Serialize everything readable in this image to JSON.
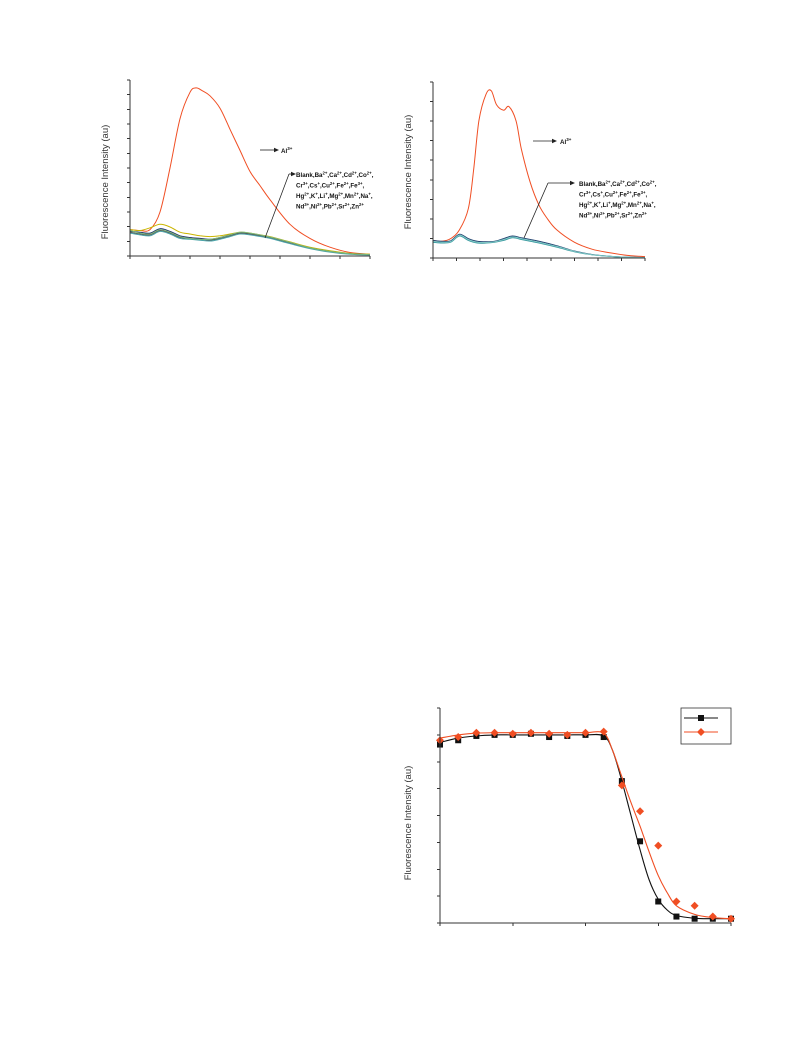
{
  "chart_data": [
    {
      "id": "chart-a",
      "type": "line",
      "title": "",
      "ylabel": "Fluorescence Intensity (au)",
      "xlabel": "",
      "xlim": [
        0,
        12
      ],
      "ylim": [
        0,
        100
      ],
      "grid": false,
      "series": [
        {
          "key": "al",
          "color": "#f04e23",
          "x": [
            0,
            0.5,
            1,
            1.5,
            2,
            2.5,
            3,
            3.3,
            3.6,
            4,
            4.5,
            5,
            5.5,
            6,
            6.5,
            7,
            8,
            9,
            10,
            11,
            12
          ],
          "y": [
            15,
            14.5,
            15,
            25,
            50,
            78,
            93,
            95.5,
            94,
            91,
            84,
            72,
            60,
            48,
            40,
            32,
            18,
            10,
            5,
            2,
            1
          ]
        },
        {
          "key": "yellow",
          "color": "#c9b400",
          "x": [
            0,
            0.5,
            1,
            1.5,
            2,
            2.5,
            3,
            3.5,
            4,
            4.5,
            5,
            5.5,
            6,
            7,
            8,
            9,
            10,
            11,
            12
          ],
          "y": [
            15,
            14.5,
            16,
            18,
            16.5,
            13.5,
            12.5,
            11.5,
            11,
            11.5,
            12.5,
            13.5,
            13,
            11,
            8,
            5,
            3,
            1.5,
            1
          ]
        },
        {
          "key": "navy",
          "color": "#1f2f6b",
          "x": [
            0,
            0.5,
            1,
            1.5,
            2,
            2.5,
            3,
            3.5,
            4,
            4.5,
            5,
            5.5,
            6,
            7,
            8,
            9,
            10,
            11,
            12
          ],
          "y": [
            14,
            13.5,
            13,
            15.5,
            14,
            11.5,
            10.5,
            10,
            9.5,
            10.5,
            12,
            13,
            12.5,
            10.5,
            7.5,
            4.5,
            2.5,
            1.2,
            0.8
          ]
        },
        {
          "key": "blank",
          "color": "#555555",
          "x": [
            0,
            0.5,
            1,
            1.5,
            2,
            2.5,
            3,
            3.5,
            4,
            4.5,
            5,
            5.5,
            6,
            7,
            8,
            9,
            10,
            11,
            12
          ],
          "y": [
            13.5,
            12.5,
            12,
            14.5,
            13,
            10.5,
            10,
            9.5,
            9,
            10,
            11.5,
            13,
            12.5,
            10.5,
            7.5,
            4.5,
            2.5,
            1.2,
            0.8
          ]
        },
        {
          "key": "teal",
          "color": "#4aa3a8",
          "x": [
            0,
            0.5,
            1,
            1.5,
            2,
            2.5,
            3,
            3.5,
            4,
            4.5,
            5,
            5.5,
            6,
            7,
            8,
            9,
            10,
            11,
            12
          ],
          "y": [
            13,
            12,
            11.5,
            14,
            12.5,
            10,
            9.5,
            9,
            8.5,
            9.5,
            11,
            12.5,
            12,
            10,
            7,
            4.2,
            2.2,
            1,
            0.6
          ]
        },
        {
          "key": "green",
          "color": "#7ab87a",
          "x": [
            0,
            0.5,
            1,
            1.5,
            2,
            2.5,
            3,
            3.5,
            4,
            4.5,
            5,
            5.5,
            6,
            7,
            8,
            9,
            10,
            11,
            12
          ],
          "y": [
            14.5,
            13,
            12.5,
            15,
            13.5,
            11,
            10,
            9.5,
            9.5,
            10.5,
            12,
            13.5,
            13,
            10.8,
            7.8,
            4.6,
            2.6,
            1.3,
            0.8
          ]
        }
      ],
      "annotations": {
        "al_label": "Al",
        "al_charge": "3+",
        "ions": [
          [
            [
              "Blank,Ba",
              ""
            ],
            [
              "2+",
              ",Ca"
            ],
            [
              "2+",
              ",Cd"
            ],
            [
              "2+",
              ",Co"
            ],
            [
              "2+",
              ","
            ]
          ],
          [
            [
              "Cr",
              ""
            ],
            [
              "3+",
              ",Cs"
            ],
            [
              "+",
              ",Cu"
            ],
            [
              "2+",
              ",Fe"
            ],
            [
              "2+",
              ",Fe"
            ],
            [
              "3+",
              ","
            ]
          ],
          [
            [
              "Hg",
              ""
            ],
            [
              "2+",
              ",K"
            ],
            [
              "+",
              ",Li"
            ],
            [
              "+",
              ",Mg"
            ],
            [
              "2+",
              ",Mn"
            ],
            [
              "2+",
              ",Na"
            ],
            [
              "+",
              ","
            ]
          ],
          [
            [
              "Nd",
              ""
            ],
            [
              "3+",
              ",Ni"
            ],
            [
              "2+",
              ",Pb"
            ],
            [
              "2+",
              ",Sr"
            ],
            [
              "2+",
              ",Zn"
            ],
            [
              "2+",
              ""
            ]
          ]
        ]
      }
    },
    {
      "id": "chart-b",
      "type": "line",
      "title": "",
      "ylabel": "Fluorescence Intensity (au)",
      "xlabel": "",
      "xlim": [
        0,
        12
      ],
      "ylim": [
        0,
        100
      ],
      "grid": false,
      "series": [
        {
          "key": "al",
          "color": "#f04e23",
          "x": [
            0,
            0.5,
            1,
            1.5,
            2,
            2.3,
            2.6,
            3,
            3.3,
            3.6,
            4,
            4.3,
            4.7,
            5,
            5.5,
            6,
            6.5,
            7,
            8,
            9,
            10,
            11,
            12
          ],
          "y": [
            10,
            9.5,
            11,
            16,
            28,
            50,
            78,
            93,
            95,
            87,
            84,
            86,
            78,
            62,
            43,
            30,
            22,
            16,
            9,
            5,
            3,
            1.5,
            0.8
          ]
        },
        {
          "key": "navy",
          "color": "#1f3f6e",
          "x": [
            0,
            0.5,
            1,
            1.5,
            2,
            2.5,
            3,
            3.5,
            4,
            4.5,
            5,
            5.5,
            6,
            7,
            8,
            9,
            10,
            11,
            12
          ],
          "y": [
            10,
            9.5,
            9.8,
            13.5,
            11,
            9.5,
            9.2,
            9.5,
            11,
            12.5,
            11.5,
            10.5,
            9.5,
            7,
            4,
            2,
            1,
            0.5,
            0.3
          ]
        },
        {
          "key": "teal",
          "color": "#3a9aa0",
          "x": [
            0,
            0.5,
            1,
            1.5,
            2,
            2.5,
            3,
            3.5,
            4,
            4.5,
            5,
            5.5,
            6,
            7,
            8,
            9,
            10,
            11,
            12
          ],
          "y": [
            9,
            8.5,
            9,
            12.5,
            10,
            8.5,
            8.5,
            9,
            10,
            11.5,
            10.5,
            9.5,
            8.5,
            6.2,
            3.6,
            1.8,
            0.9,
            0.4,
            0.2
          ]
        },
        {
          "key": "lightteal",
          "color": "#7fc6c4",
          "x": [
            0,
            0.5,
            1,
            1.5,
            2,
            2.5,
            3,
            3.5,
            4,
            4.5,
            5,
            5.5,
            6,
            7,
            8,
            9,
            10,
            11,
            12
          ],
          "y": [
            9.5,
            9,
            9.4,
            13,
            10.5,
            9,
            8.8,
            9.2,
            10.5,
            12,
            11,
            10,
            9,
            6.6,
            3.8,
            1.9,
            1,
            0.45,
            0.25
          ]
        }
      ],
      "annotations": {
        "al_label": "Al",
        "al_charge": "3+",
        "ions": [
          [
            [
              "Blank,Ba",
              ""
            ],
            [
              "2+",
              ",Ca"
            ],
            [
              "2+",
              ",Cd"
            ],
            [
              "2+",
              ",Co"
            ],
            [
              "2+",
              ","
            ]
          ],
          [
            [
              "Cr",
              ""
            ],
            [
              "3+",
              ",Cs"
            ],
            [
              "+",
              ",Cu"
            ],
            [
              "2+",
              ",Fe"
            ],
            [
              "2+",
              ",Fe"
            ],
            [
              "3+",
              ","
            ]
          ],
          [
            [
              "Hg",
              ""
            ],
            [
              "2+",
              ",K"
            ],
            [
              "+",
              ",Li"
            ],
            [
              "+",
              ",Mg"
            ],
            [
              "2+",
              ",Mn"
            ],
            [
              "2+",
              ",Na"
            ],
            [
              "+",
              ","
            ]
          ],
          [
            [
              "Nd",
              ""
            ],
            [
              "3+",
              ",Ni"
            ],
            [
              "2+",
              ",Pb"
            ],
            [
              "2+",
              ",Sr"
            ],
            [
              "2+",
              ",Zn"
            ],
            [
              "2+",
              ""
            ]
          ]
        ]
      }
    },
    {
      "id": "chart-c",
      "type": "scatter",
      "title": "",
      "ylabel": "Fluorescence Intensity (au)",
      "xlabel": "",
      "xlim": [
        0,
        16
      ],
      "ylim": [
        0,
        100
      ],
      "grid": false,
      "legend": "top-right",
      "series": [
        {
          "key": "black",
          "color": "#111111",
          "marker": "square",
          "x": [
            0,
            1,
            2,
            3,
            4,
            5,
            6,
            7,
            8,
            9,
            10,
            11,
            12,
            13,
            14,
            15,
            16
          ],
          "y": [
            83,
            85,
            87,
            87.5,
            87.5,
            88,
            86.5,
            87,
            87.5,
            86.5,
            66,
            38,
            10,
            3,
            2,
            2,
            2
          ],
          "curve_x": [
            0,
            1,
            2,
            3,
            4,
            5,
            6,
            7,
            8,
            9,
            9.5,
            10,
            10.5,
            11,
            11.5,
            12,
            12.5,
            13,
            14,
            15,
            16
          ],
          "curve_y": [
            84,
            86,
            87,
            87.5,
            87.5,
            87.5,
            87.5,
            87.5,
            87.5,
            87,
            80,
            66,
            50,
            34,
            20,
            11,
            6,
            3.5,
            2.2,
            2,
            2
          ]
        },
        {
          "key": "red",
          "color": "#f04e23",
          "marker": "diamond",
          "x": [
            0,
            1,
            2,
            3,
            4,
            5,
            6,
            7,
            8,
            9,
            10,
            11,
            12,
            13,
            14,
            15,
            16
          ],
          "y": [
            85,
            86.5,
            88.5,
            88.5,
            88,
            88.5,
            88,
            87.5,
            88.5,
            89,
            64,
            52,
            36,
            10,
            8,
            3,
            2
          ],
          "curve_x": [
            0,
            1,
            2,
            3,
            4,
            5,
            6,
            7,
            8,
            9,
            9.5,
            10,
            10.5,
            11,
            11.5,
            12,
            12.5,
            13,
            14,
            15,
            16
          ],
          "curve_y": [
            86,
            87.5,
            88.3,
            88.5,
            88.5,
            88.5,
            88.5,
            88.5,
            88.5,
            88.3,
            80,
            68,
            56,
            45,
            33,
            22,
            14,
            8,
            4,
            2.5,
            2
          ]
        }
      ]
    }
  ]
}
